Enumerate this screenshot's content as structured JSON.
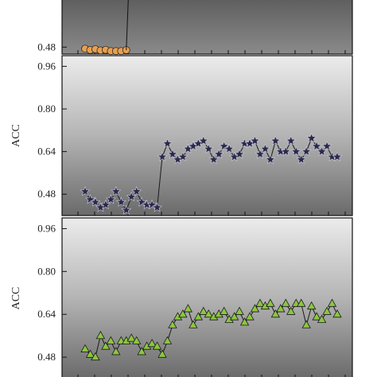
{
  "chart_data": [
    {
      "type": "scatter",
      "panel": "top",
      "ylabel": "",
      "ylim": [
        0.4,
        1.04
      ],
      "yticks": [
        "0.48"
      ],
      "yticks_values": [
        0.48
      ],
      "marker": "circle",
      "marker_color": "#e8a050",
      "series": [
        {
          "x": [
            1,
            2,
            3,
            4,
            5,
            6,
            7,
            8,
            9
          ],
          "y": [
            0.462,
            0.447,
            0.456,
            0.442,
            0.449,
            0.434,
            0.434,
            0.434,
            0.446
          ]
        }
      ],
      "tail_line": {
        "x": [
          9,
          9.4
        ],
        "y": [
          0.446,
          1.04
        ]
      }
    },
    {
      "type": "line",
      "panel": "middle",
      "ylabel": "ACC",
      "ylim": [
        0.4,
        1.0
      ],
      "yticks": [
        "0.96",
        "0.80",
        "0.64",
        "0.48"
      ],
      "yticks_values": [
        0.96,
        0.8,
        0.64,
        0.48
      ],
      "marker": "star",
      "marker_color": "#2a2a48",
      "series": [
        {
          "x": [
            1,
            2,
            3,
            4,
            5,
            6,
            7,
            8,
            9,
            10,
            11,
            12,
            13,
            14,
            15,
            16,
            17,
            18,
            19,
            20,
            21,
            22,
            23,
            24,
            25,
            26,
            27,
            28,
            29,
            30,
            31,
            32,
            33,
            34,
            35,
            36,
            37,
            38,
            39,
            40,
            41,
            42,
            43,
            44,
            45,
            46,
            47,
            48,
            49,
            50
          ],
          "y": [
            0.49,
            0.46,
            0.45,
            0.43,
            0.44,
            0.46,
            0.49,
            0.45,
            0.42,
            0.47,
            0.49,
            0.45,
            0.44,
            0.44,
            0.43,
            0.62,
            0.67,
            0.63,
            0.61,
            0.62,
            0.65,
            0.66,
            0.67,
            0.68,
            0.65,
            0.61,
            0.63,
            0.66,
            0.65,
            0.62,
            0.63,
            0.67,
            0.67,
            0.68,
            0.63,
            0.65,
            0.61,
            0.68,
            0.64,
            0.64,
            0.68,
            0.64,
            0.61,
            0.64,
            0.69,
            0.66,
            0.64,
            0.66,
            0.62,
            0.62
          ]
        }
      ]
    },
    {
      "type": "scatter",
      "panel": "bottom",
      "ylabel": "ACC",
      "ylim": [
        0.4,
        1.0
      ],
      "yticks": [
        "0.96",
        "0.80",
        "0.64",
        "0.48"
      ],
      "yticks_values": [
        0.96,
        0.8,
        0.64,
        0.48
      ],
      "marker": "triangle",
      "marker_color": "#8cc63f",
      "series": [
        {
          "x": [
            1,
            2,
            3,
            4,
            5,
            6,
            7,
            8,
            9,
            10,
            11,
            12,
            13,
            14,
            15,
            16,
            17,
            18,
            19,
            20,
            21,
            22,
            23,
            24,
            25,
            26,
            27,
            28,
            29,
            30,
            31,
            32,
            33,
            34,
            35,
            36,
            37,
            38,
            39,
            40,
            41,
            42,
            43,
            44,
            45,
            46,
            47,
            48,
            49,
            50
          ],
          "y": [
            0.51,
            0.49,
            0.48,
            0.56,
            0.52,
            0.54,
            0.5,
            0.54,
            0.54,
            0.55,
            0.54,
            0.5,
            0.52,
            0.53,
            0.52,
            0.49,
            0.54,
            0.6,
            0.63,
            0.64,
            0.66,
            0.6,
            0.63,
            0.65,
            0.64,
            0.63,
            0.64,
            0.65,
            0.62,
            0.63,
            0.65,
            0.61,
            0.63,
            0.66,
            0.68,
            0.67,
            0.68,
            0.64,
            0.66,
            0.68,
            0.65,
            0.68,
            0.68,
            0.6,
            0.67,
            0.63,
            0.62,
            0.65,
            0.68,
            0.64
          ]
        }
      ]
    }
  ]
}
